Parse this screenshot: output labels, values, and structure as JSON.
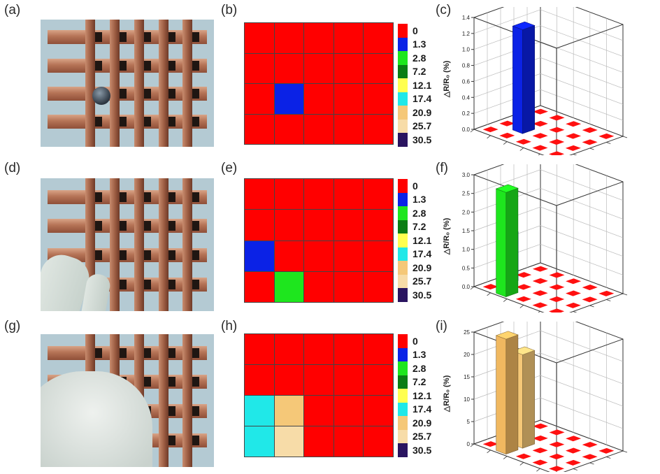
{
  "panel_labels": [
    "(a)",
    "(b)",
    "(c)",
    "(d)",
    "(e)",
    "(f)",
    "(g)",
    "(h)",
    "(i)"
  ],
  "legend_values": [
    "0",
    "1.3",
    "2.8",
    "7.2",
    "12.1",
    "17.4",
    "20.9",
    "25.7",
    "30.5"
  ],
  "legend_colors": [
    "#ff0000",
    "#0b22e6",
    "#1ee61e",
    "#0b7d14",
    "#ffff50",
    "#20e8e8",
    "#f5c878",
    "#f7dca8",
    "#2a1460"
  ],
  "heatmaps": [
    {
      "panel": "b",
      "cells": [
        [
          "0",
          "0",
          "0",
          "0",
          "0"
        ],
        [
          "0",
          "0",
          "0",
          "0",
          "0"
        ],
        [
          "0",
          "1.3",
          "0",
          "0",
          "0"
        ],
        [
          "0",
          "0",
          "0",
          "0",
          "0"
        ]
      ]
    },
    {
      "panel": "e",
      "cells": [
        [
          "0",
          "0",
          "0",
          "0",
          "0"
        ],
        [
          "0",
          "0",
          "0",
          "0",
          "0"
        ],
        [
          "1.3",
          "0",
          "0",
          "0",
          "0"
        ],
        [
          "0",
          "2.8",
          "0",
          "0",
          "0"
        ]
      ]
    },
    {
      "panel": "h",
      "cells": [
        [
          "0",
          "0",
          "0",
          "0",
          "0"
        ],
        [
          "0",
          "0",
          "0",
          "0",
          "0"
        ],
        [
          "17.4",
          "20.9",
          "0",
          "0",
          "0"
        ],
        [
          "17.4",
          "25.7",
          "0",
          "0",
          "0"
        ]
      ]
    }
  ],
  "chart_data": [
    {
      "panel": "c",
      "type": "bar3d",
      "ylabel": "△R/R₀ (%)",
      "yticks": [
        "0.0",
        "0.2",
        "0.4",
        "0.6",
        "0.8",
        "1.0",
        "1.2",
        "1.4"
      ],
      "ylim": [
        0,
        1.4
      ],
      "bars": [
        {
          "row": 3,
          "col": 2,
          "value": 1.3,
          "color": "#0b22e6"
        }
      ]
    },
    {
      "panel": "f",
      "type": "bar3d",
      "ylabel": "△R/R₀ (%)",
      "yticks": [
        "0.0",
        "0.5",
        "1.0",
        "1.5",
        "2.0",
        "2.5",
        "3.0"
      ],
      "ylim": [
        0,
        3.0
      ],
      "bars": [
        {
          "row": 3,
          "col": 1,
          "value": 1.3,
          "color": "#0b22e6"
        },
        {
          "row": 4,
          "col": 2,
          "value": 2.8,
          "color": "#1ee61e"
        }
      ]
    },
    {
      "panel": "i",
      "type": "bar3d",
      "ylabel": "△R/R₀ (%)",
      "yticks": [
        "0",
        "5",
        "10",
        "15",
        "20",
        "25"
      ],
      "ylim": [
        0,
        25
      ],
      "bars": [
        {
          "row": 3,
          "col": 1,
          "value": 17.4,
          "color": "#20e8e8"
        },
        {
          "row": 3,
          "col": 2,
          "value": 20.9,
          "color": "#f5c878"
        },
        {
          "row": 4,
          "col": 2,
          "value": 25.7,
          "color": "#f0b860"
        }
      ]
    }
  ]
}
